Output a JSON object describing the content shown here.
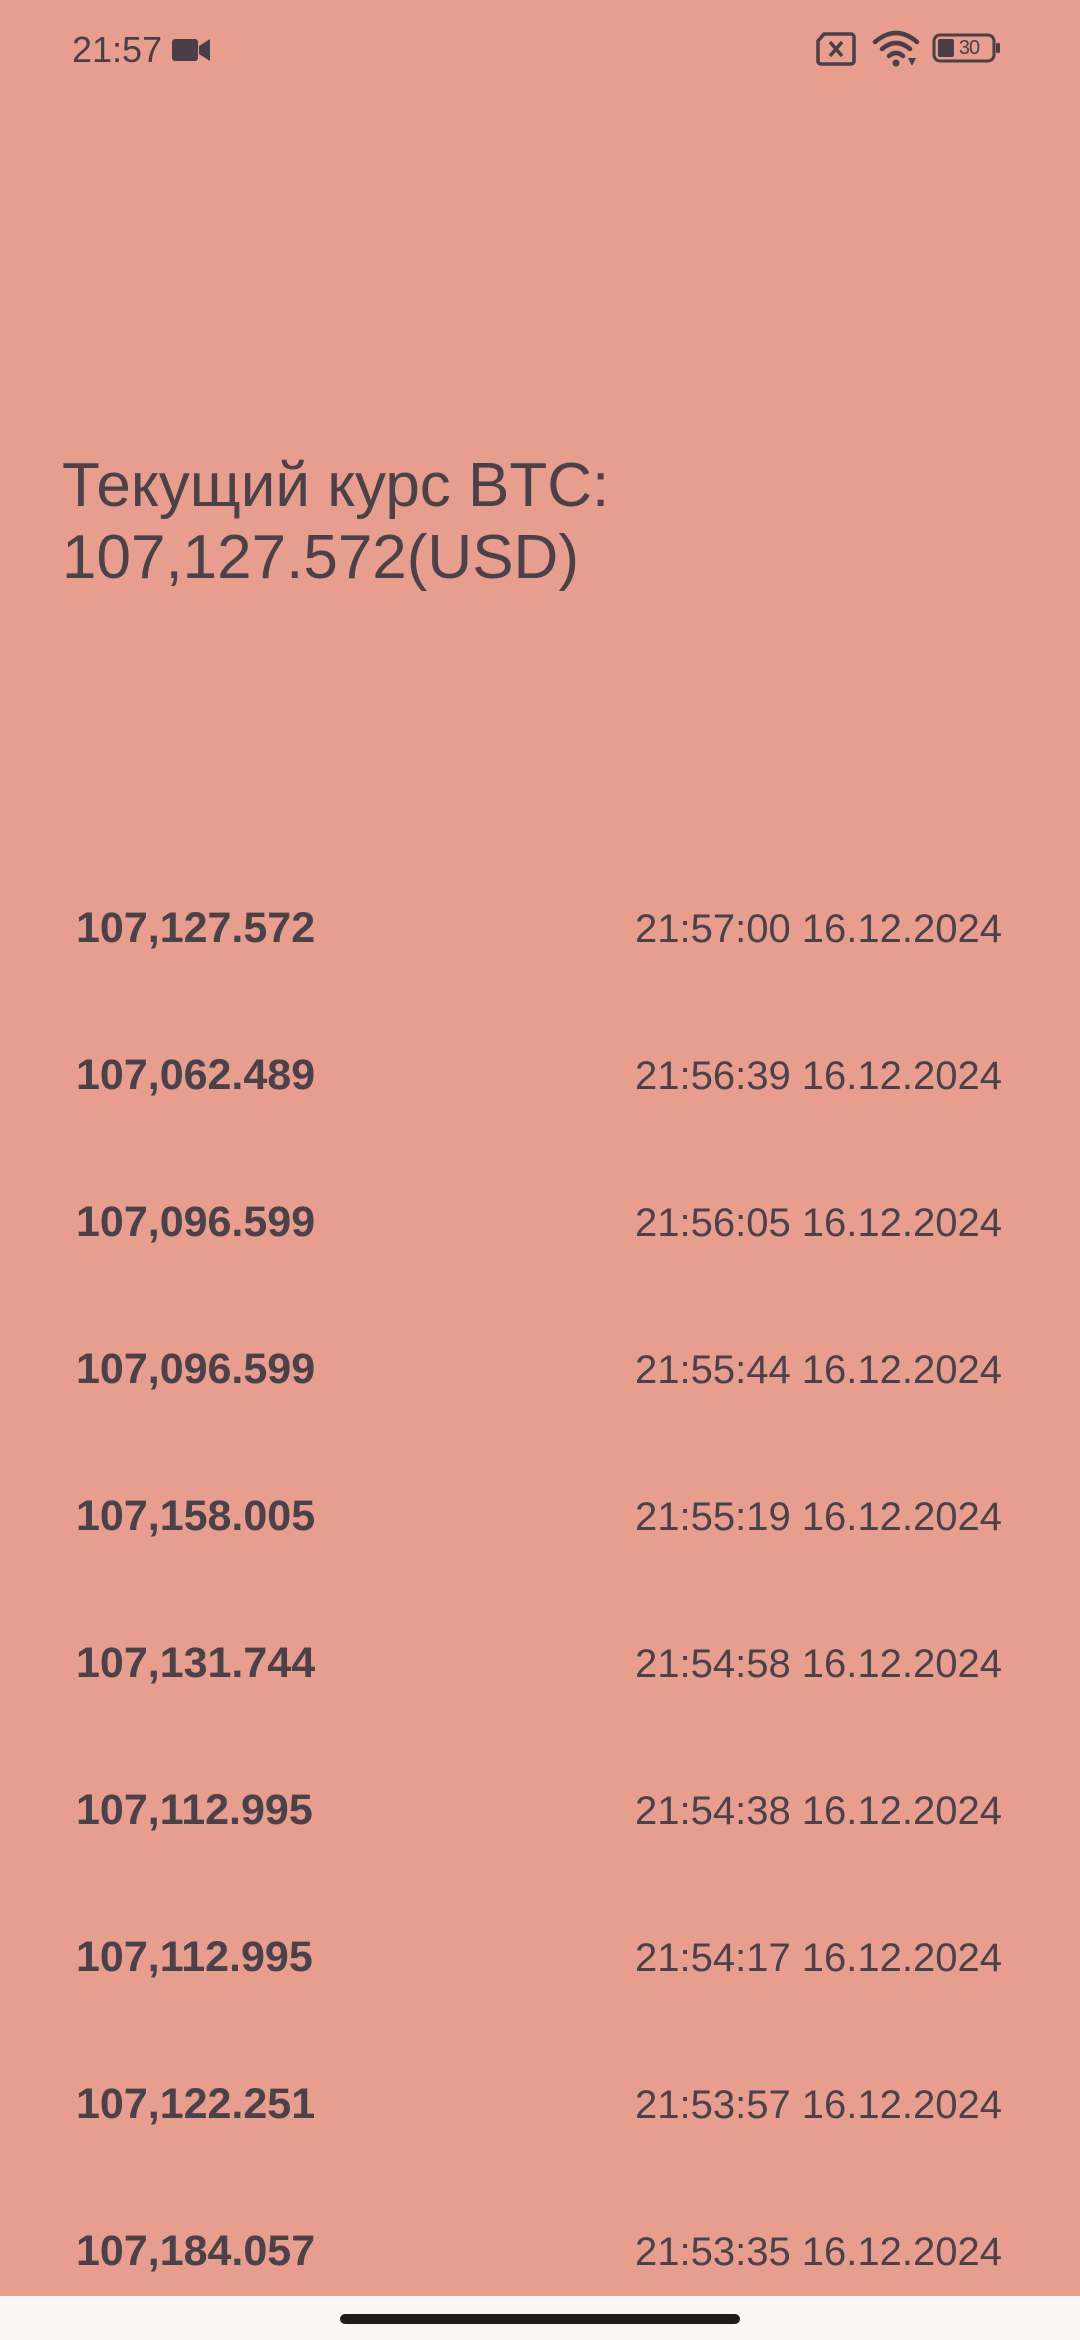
{
  "status_bar": {
    "time": "21:57",
    "battery_level": "30",
    "icons": [
      "video-camera-icon",
      "no-sim-icon",
      "wifi-icon",
      "battery-icon"
    ]
  },
  "header": {
    "line1": "Текущий курс BTC:",
    "line2": "107,127.572(USD)"
  },
  "history": [
    {
      "price": "107,127.572",
      "time": "21:57:00 16.12.2024"
    },
    {
      "price": "107,062.489",
      "time": "21:56:39 16.12.2024"
    },
    {
      "price": "107,096.599",
      "time": "21:56:05 16.12.2024"
    },
    {
      "price": "107,096.599",
      "time": "21:55:44 16.12.2024"
    },
    {
      "price": "107,158.005",
      "time": "21:55:19 16.12.2024"
    },
    {
      "price": "107,131.744",
      "time": "21:54:58 16.12.2024"
    },
    {
      "price": "107,112.995",
      "time": "21:54:38 16.12.2024"
    },
    {
      "price": "107,112.995",
      "time": "21:54:17 16.12.2024"
    },
    {
      "price": "107,122.251",
      "time": "21:53:57 16.12.2024"
    },
    {
      "price": "107,184.057",
      "time": "21:53:35 16.12.2024"
    }
  ],
  "colors": {
    "background": "#e89e8f",
    "text": "#4c4149",
    "nav_bar": "#fdf5f4"
  }
}
